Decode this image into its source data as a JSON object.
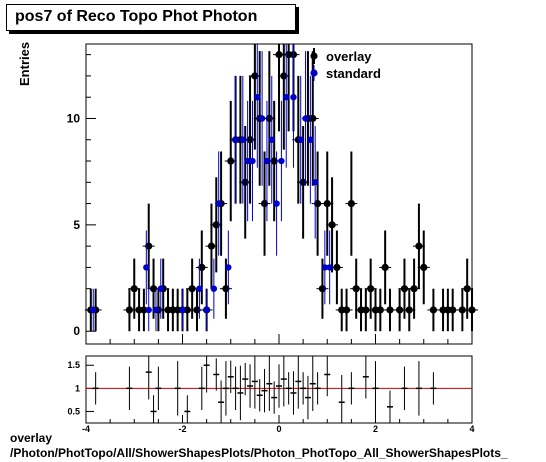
{
  "title": "pos7 of Reco Topo Phot Photon",
  "footer": {
    "line1": "overlay",
    "line2": "/Photon/PhotTopo/All/ShowerShapesPlots/Photon_PhotTopo_All_ShowerShapesPlots_"
  },
  "colors": {
    "overlay": "#000000",
    "standard": "#0000cc",
    "ratio_line": "#cc0000"
  },
  "chart_data": [
    {
      "type": "scatter",
      "title": "pos7 of Reco Topo Phot Photon",
      "xlabel": "",
      "ylabel": "Entries",
      "xlim": [
        -4,
        4
      ],
      "ylim": [
        -0.6,
        13.5
      ],
      "y_ticks": [
        0,
        5,
        10
      ],
      "x_ticks": [],
      "grid": false,
      "legend_position": "top-right",
      "legend": [
        "overlay",
        "standard"
      ],
      "series": [
        {
          "name": "overlay",
          "x": [
            -3.9,
            -3.8,
            -3.1,
            -3.0,
            -2.9,
            -2.8,
            -2.7,
            -2.6,
            -2.5,
            -2.4,
            -2.3,
            -2.2,
            -2.1,
            -2.0,
            -1.9,
            -1.8,
            -1.7,
            -1.6,
            -1.5,
            -1.4,
            -1.3,
            -1.2,
            -1.1,
            -1.0,
            -0.9,
            -0.8,
            -0.7,
            -0.6,
            -0.5,
            -0.4,
            -0.3,
            -0.2,
            -0.1,
            0.0,
            0.1,
            0.2,
            0.3,
            0.4,
            0.5,
            0.6,
            0.7,
            0.8,
            0.9,
            1.0,
            1.1,
            1.2,
            1.3,
            1.4,
            1.5,
            1.6,
            1.7,
            1.8,
            1.9,
            2.0,
            2.1,
            2.2,
            2.3,
            2.5,
            2.6,
            2.7,
            2.8,
            2.9,
            3.0,
            3.2,
            3.4,
            3.5,
            3.6,
            3.8,
            3.9,
            4.0
          ],
          "y": [
            1,
            1,
            1,
            2,
            1,
            1,
            4,
            2,
            1,
            2,
            1,
            1,
            1,
            1,
            1,
            2,
            1,
            3,
            1,
            4,
            5,
            6,
            2,
            8,
            9,
            9,
            7,
            9,
            12,
            10,
            6,
            10,
            8,
            13,
            12,
            13,
            13,
            9,
            7,
            10,
            10,
            6,
            2,
            6,
            5,
            3,
            1,
            1,
            6,
            2,
            1,
            1,
            2,
            1,
            1,
            3,
            1,
            1,
            2,
            1,
            2,
            4,
            3,
            1,
            1,
            1,
            1,
            1,
            2,
            1
          ]
        },
        {
          "name": "standard",
          "x": [
            -3.85,
            -2.75,
            -2.7,
            -2.55,
            -2.45,
            -2.0,
            -1.65,
            -1.5,
            -1.35,
            -1.25,
            -1.05,
            -0.9,
            -0.75,
            -0.65,
            -0.55,
            -0.45,
            -0.35,
            -0.25,
            -0.15,
            -0.05,
            0.05,
            0.15,
            0.3,
            0.45,
            0.55,
            0.65,
            0.75,
            0.95,
            1.05
          ],
          "y": [
            1,
            3,
            1,
            1,
            2,
            1,
            2,
            1,
            2,
            6,
            3,
            9,
            9,
            8,
            8,
            11,
            10,
            8,
            9,
            6,
            8,
            11,
            11,
            9,
            10,
            9,
            7,
            3,
            3
          ]
        }
      ]
    },
    {
      "type": "scatter",
      "title": "",
      "xlabel": "",
      "ylabel": "",
      "xlim": [
        -4,
        4
      ],
      "ylim": [
        0.25,
        1.7
      ],
      "y_ticks": [
        0.5,
        1,
        1.5
      ],
      "y_tick_labels": [
        "0.5",
        "1",
        "1.5"
      ],
      "x_ticks": [
        -4,
        -2,
        0,
        2,
        4
      ],
      "x_tick_labels": [
        "-4",
        "-2",
        "0",
        "2",
        "4"
      ],
      "reference_line": 1,
      "grid": false,
      "series": [
        {
          "name": "ratio",
          "x": [
            -3.8,
            -3.1,
            -2.7,
            -2.6,
            -2.5,
            -2.1,
            -1.9,
            -1.6,
            -1.5,
            -1.3,
            -1.2,
            -1.1,
            -1.0,
            -0.9,
            -0.8,
            -0.7,
            -0.6,
            -0.5,
            -0.4,
            -0.3,
            -0.2,
            -0.1,
            0.0,
            0.1,
            0.2,
            0.3,
            0.4,
            0.5,
            0.6,
            0.7,
            0.8,
            1.0,
            1.3,
            1.5,
            1.8,
            2.0,
            2.3,
            2.6,
            2.9,
            3.2
          ],
          "y": [
            1.0,
            1.0,
            1.35,
            0.5,
            1.0,
            1.0,
            0.5,
            1.0,
            1.5,
            1.3,
            0.7,
            1.0,
            1.25,
            1.0,
            0.9,
            1.2,
            1.05,
            1.15,
            0.85,
            0.95,
            1.1,
            0.8,
            1.05,
            1.2,
            1.0,
            0.9,
            1.15,
            1.0,
            0.8,
            1.1,
            1.0,
            1.3,
            0.7,
            1.0,
            1.25,
            1.0,
            0.6,
            1.0,
            1.0,
            1.0
          ]
        }
      ]
    }
  ]
}
